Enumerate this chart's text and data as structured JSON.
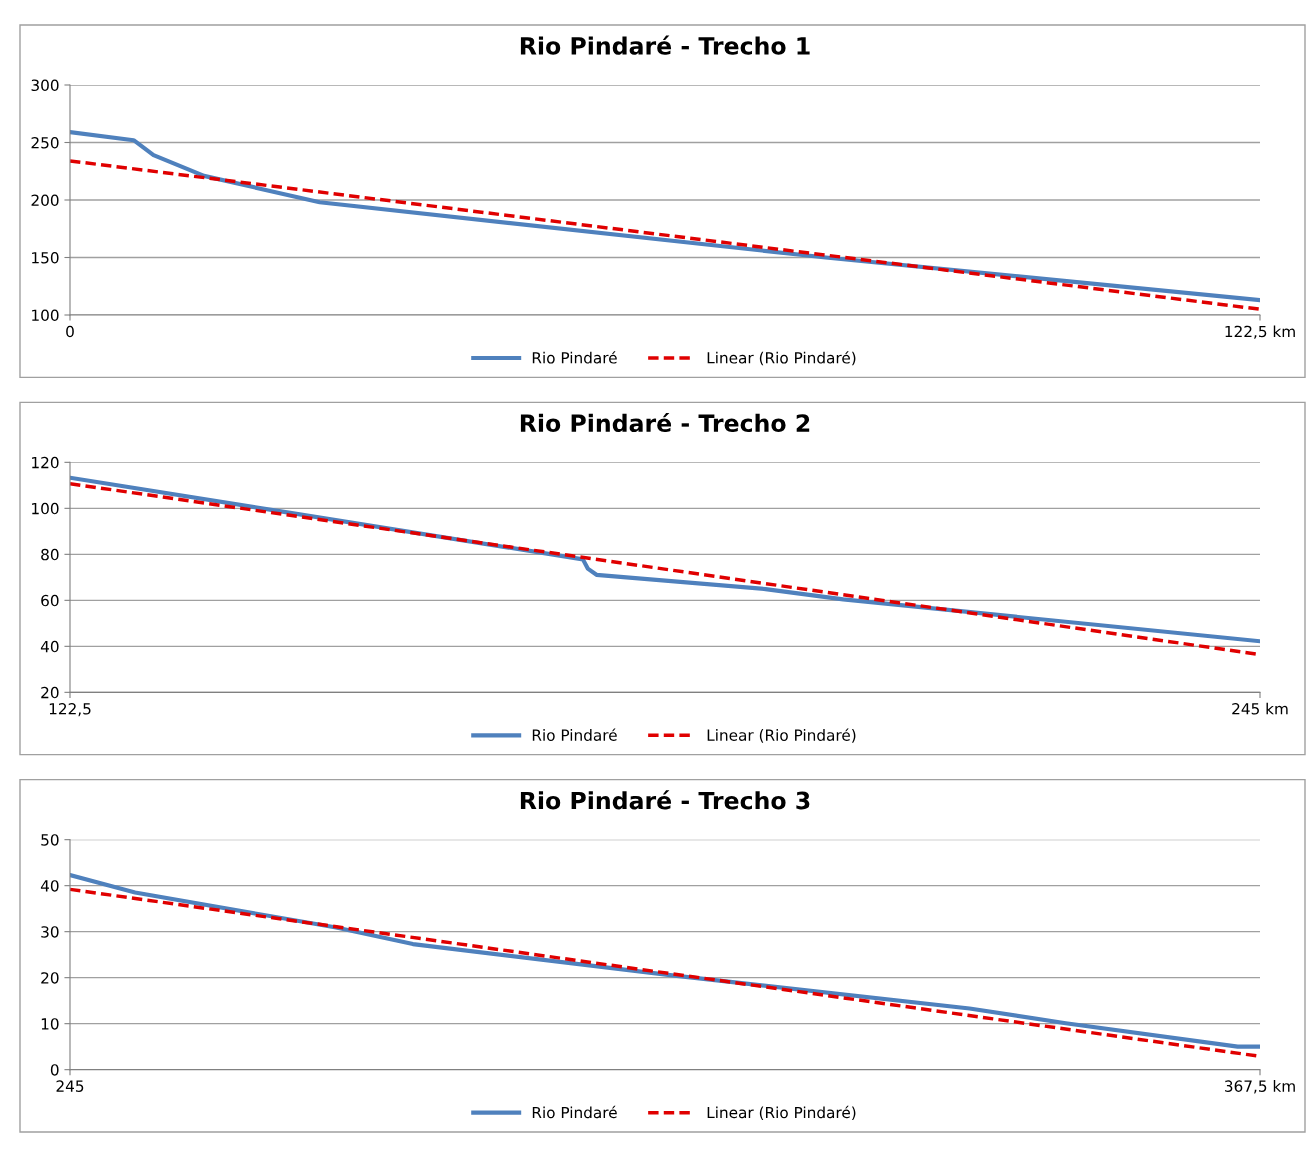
{
  "chart_data": [
    {
      "type": "line",
      "title": "Rio Pindaré - Trecho 1",
      "legend": "bottom",
      "grid": "y",
      "xlim": [
        0,
        122.5
      ],
      "xticks": [
        {
          "value": 0,
          "label": "0"
        },
        {
          "value": 122.5,
          "label": "122,5 km"
        }
      ],
      "ylim": [
        100,
        300
      ],
      "yticks": [
        100,
        150,
        200,
        250,
        300
      ],
      "series": [
        {
          "name": "Rio Pindaré",
          "color": "#4f81bd",
          "line_style": "solid",
          "x": [
            0,
            6.55,
            8.6,
            13.8,
            25.7,
            77.8,
            122.5
          ],
          "values": [
            259,
            252,
            239,
            221,
            198,
            150,
            113
          ]
        },
        {
          "name": "Linear (Rio Pindaré)",
          "color": "#e00000",
          "line_style": "dashed",
          "x": [
            0,
            122.5
          ],
          "values": [
            234,
            105
          ]
        }
      ]
    },
    {
      "type": "line",
      "title": "Rio Pindaré - Trecho 2",
      "legend": "bottom",
      "grid": "y",
      "xlim": [
        122.5,
        245
      ],
      "xticks": [
        {
          "value": 122.5,
          "label": "122,5"
        },
        {
          "value": 245,
          "label": "245 km"
        }
      ],
      "ylim": [
        20,
        120
      ],
      "yticks": [
        20,
        40,
        60,
        80,
        100,
        120
      ],
      "series": [
        {
          "name": "Rio Pindaré",
          "color": "#4f81bd",
          "line_style": "solid",
          "x": [
            122.5,
            175.3,
            175.8,
            176.7,
            194.1,
            202.1,
            245
          ],
          "values": [
            113.3,
            77.8,
            73.8,
            71.1,
            64.9,
            60.4,
            42.2
          ]
        },
        {
          "name": "Linear (Rio Pindaré)",
          "color": "#e00000",
          "line_style": "dashed",
          "x": [
            122.5,
            245
          ],
          "values": [
            110.7,
            36.4
          ]
        }
      ]
    },
    {
      "type": "line",
      "title": "Rio Pindaré - Trecho 3",
      "legend": "bottom",
      "grid": "y",
      "xlim": [
        245,
        367.5
      ],
      "xticks": [
        {
          "value": 245,
          "label": "245"
        },
        {
          "value": 367.5,
          "label": "367,5 km"
        }
      ],
      "ylim": [
        0,
        50
      ],
      "yticks": [
        0,
        10,
        20,
        30,
        40,
        50
      ],
      "series": [
        {
          "name": "Rio Pindaré",
          "color": "#4f81bd",
          "line_style": "solid",
          "x": [
            245,
            251.7,
            272.4,
            280.3,
            307.0,
            337.6,
            347.5,
            365.2,
            367.5
          ],
          "values": [
            42.3,
            38.5,
            30.9,
            27.3,
            20.5,
            13.3,
            10.1,
            5.0,
            5.0
          ]
        },
        {
          "name": "Linear (Rio Pindaré)",
          "color": "#e00000",
          "line_style": "dashed",
          "x": [
            245,
            367.5
          ],
          "values": [
            39.2,
            2.9
          ]
        }
      ]
    }
  ]
}
